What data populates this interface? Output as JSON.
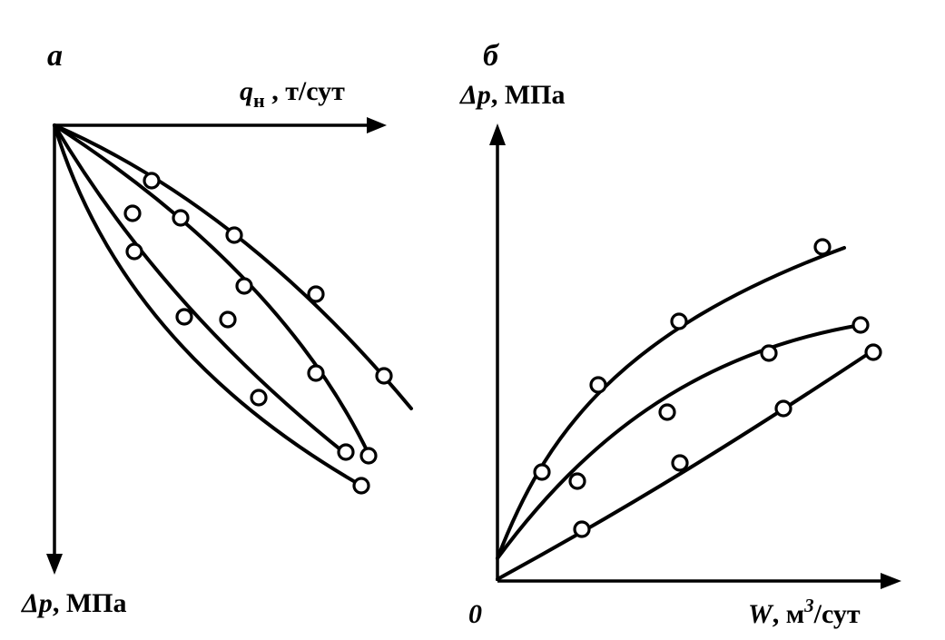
{
  "panel_a": {
    "label": "а",
    "x_axis": {
      "symbol": "q",
      "subscript": "н",
      "unit": " , т/сут"
    },
    "y_axis": {
      "symbol": "Δp",
      "unit": ", МПа"
    }
  },
  "panel_b": {
    "label": "б",
    "y_axis": {
      "symbol": "Δp",
      "unit": ", МПа"
    },
    "x_axis": {
      "symbol": "W",
      "unit": ", м",
      "superscript": "3",
      "unit_tail": "/сут"
    },
    "origin_label": "0"
  },
  "colors": {
    "ink": "#000000",
    "background": "#ffffff"
  }
}
